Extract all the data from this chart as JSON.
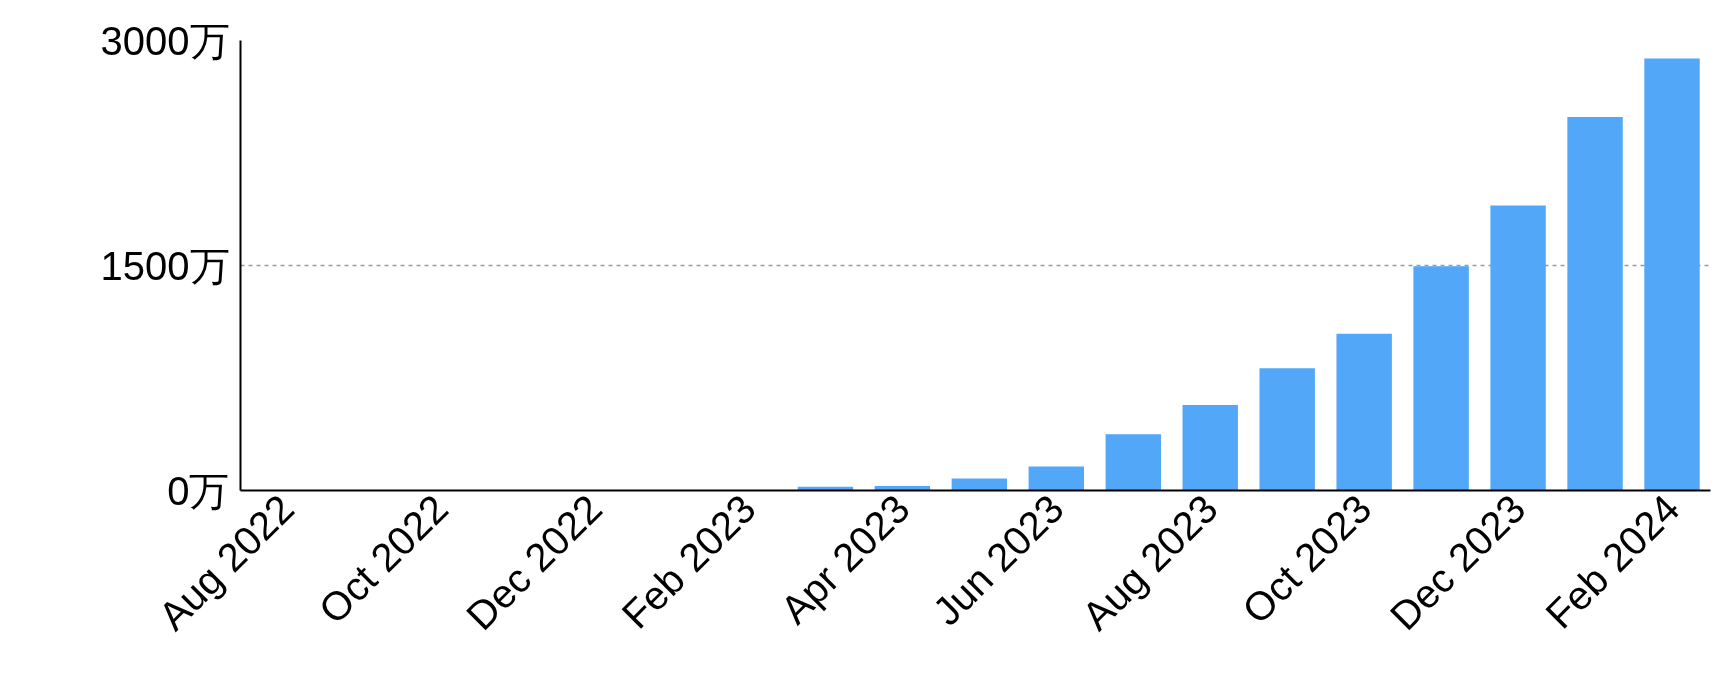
{
  "chart_data": {
    "type": "bar",
    "categories": [
      "Aug 2022",
      null,
      "Oct 2022",
      null,
      "Dec 2022",
      null,
      "Feb 2023",
      null,
      "Apr 2023",
      null,
      "Jun 2023",
      null,
      "Aug 2023",
      null,
      "Oct 2023",
      null,
      "Dec 2023",
      null,
      "Feb 2024"
    ],
    "values": [
      0,
      0,
      0,
      0,
      0,
      0,
      0,
      25,
      30,
      80,
      160,
      375,
      570,
      815,
      1045,
      1495,
      1900,
      2490,
      2880
    ],
    "color": "#52a7f8",
    "ylim": [
      0,
      3000
    ],
    "yticks": [
      {
        "value": 0,
        "label": "0万"
      },
      {
        "value": 1500,
        "label": "1500万"
      },
      {
        "value": 3000,
        "label": "3000万"
      }
    ],
    "grid": "y"
  }
}
